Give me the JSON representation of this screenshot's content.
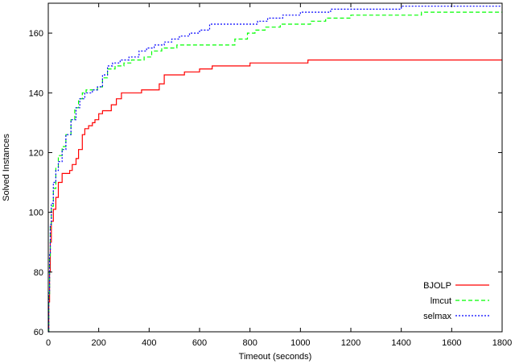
{
  "chart_data": {
    "type": "line",
    "title": "",
    "xlabel": "Timeout (seconds)",
    "ylabel": "Solved Instances",
    "xlim": [
      0,
      1800
    ],
    "ylim": [
      60,
      170
    ],
    "xticks": [
      0,
      200,
      400,
      600,
      800,
      1000,
      1200,
      1400,
      1600,
      1800
    ],
    "yticks": [
      60,
      80,
      100,
      120,
      140,
      160
    ],
    "grid": false,
    "legend_position": "bottom-right",
    "series": [
      {
        "name": "BJOLP",
        "color": "#ff0000",
        "dash": "solid",
        "points": [
          [
            0,
            60
          ],
          [
            2,
            70
          ],
          [
            5,
            80
          ],
          [
            8,
            90
          ],
          [
            12,
            97
          ],
          [
            20,
            101
          ],
          [
            30,
            105
          ],
          [
            40,
            110
          ],
          [
            55,
            113
          ],
          [
            75,
            113
          ],
          [
            85,
            114
          ],
          [
            95,
            116
          ],
          [
            110,
            118
          ],
          [
            120,
            121
          ],
          [
            135,
            126
          ],
          [
            145,
            128
          ],
          [
            160,
            129
          ],
          [
            175,
            130
          ],
          [
            185,
            131
          ],
          [
            200,
            133
          ],
          [
            215,
            134
          ],
          [
            230,
            134
          ],
          [
            250,
            136
          ],
          [
            270,
            138
          ],
          [
            290,
            140
          ],
          [
            320,
            140
          ],
          [
            350,
            140
          ],
          [
            370,
            141
          ],
          [
            420,
            141
          ],
          [
            440,
            143
          ],
          [
            460,
            146
          ],
          [
            520,
            146
          ],
          [
            540,
            147
          ],
          [
            600,
            148
          ],
          [
            650,
            149
          ],
          [
            760,
            149
          ],
          [
            800,
            150
          ],
          [
            1000,
            150
          ],
          [
            1030,
            151
          ],
          [
            1800,
            151
          ]
        ]
      },
      {
        "name": "lmcut",
        "color": "#00ff00",
        "dash": "dashed",
        "points": [
          [
            0,
            60
          ],
          [
            2,
            72
          ],
          [
            5,
            85
          ],
          [
            8,
            95
          ],
          [
            12,
            102
          ],
          [
            20,
            108
          ],
          [
            30,
            115
          ],
          [
            40,
            119
          ],
          [
            55,
            122
          ],
          [
            70,
            126
          ],
          [
            90,
            131
          ],
          [
            105,
            135
          ],
          [
            120,
            138
          ],
          [
            135,
            140
          ],
          [
            150,
            141
          ],
          [
            175,
            141
          ],
          [
            195,
            142
          ],
          [
            215,
            145
          ],
          [
            235,
            148
          ],
          [
            265,
            149
          ],
          [
            300,
            150
          ],
          [
            330,
            151
          ],
          [
            380,
            152
          ],
          [
            410,
            154
          ],
          [
            450,
            155
          ],
          [
            480,
            155
          ],
          [
            510,
            156
          ],
          [
            560,
            156
          ],
          [
            700,
            156
          ],
          [
            740,
            158
          ],
          [
            790,
            160
          ],
          [
            820,
            161
          ],
          [
            860,
            162
          ],
          [
            920,
            163
          ],
          [
            1000,
            163
          ],
          [
            1040,
            164
          ],
          [
            1100,
            165
          ],
          [
            1200,
            166
          ],
          [
            1440,
            166
          ],
          [
            1480,
            167
          ],
          [
            1800,
            167
          ]
        ]
      },
      {
        "name": "selmax",
        "color": "#0000ff",
        "dash": "dotted",
        "points": [
          [
            0,
            60
          ],
          [
            2,
            73
          ],
          [
            5,
            86
          ],
          [
            8,
            96
          ],
          [
            12,
            103
          ],
          [
            20,
            110
          ],
          [
            30,
            114
          ],
          [
            40,
            117
          ],
          [
            55,
            121
          ],
          [
            70,
            126
          ],
          [
            90,
            131
          ],
          [
            110,
            135
          ],
          [
            125,
            138
          ],
          [
            145,
            140
          ],
          [
            175,
            141
          ],
          [
            195,
            142
          ],
          [
            215,
            146
          ],
          [
            235,
            149
          ],
          [
            255,
            150
          ],
          [
            285,
            151
          ],
          [
            320,
            152
          ],
          [
            360,
            154
          ],
          [
            390,
            155
          ],
          [
            420,
            156
          ],
          [
            460,
            157
          ],
          [
            490,
            158
          ],
          [
            520,
            159
          ],
          [
            560,
            160
          ],
          [
            600,
            161
          ],
          [
            640,
            163
          ],
          [
            700,
            163
          ],
          [
            790,
            163
          ],
          [
            830,
            164
          ],
          [
            870,
            165
          ],
          [
            930,
            166
          ],
          [
            1000,
            167
          ],
          [
            1060,
            167
          ],
          [
            1120,
            168
          ],
          [
            1300,
            168
          ],
          [
            1400,
            169
          ],
          [
            1800,
            169
          ]
        ]
      }
    ]
  }
}
